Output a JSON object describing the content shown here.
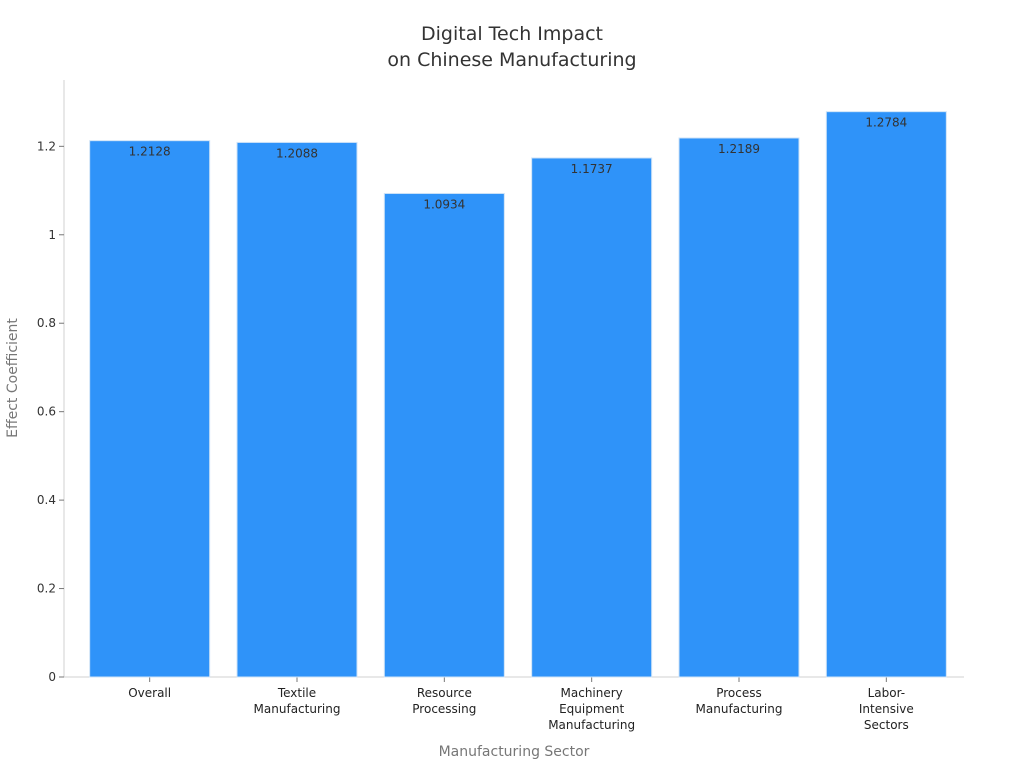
{
  "chart_data": {
    "type": "bar",
    "title_lines": [
      "Digital Tech Impact",
      "on Chinese Manufacturing"
    ],
    "xlabel": "Manufacturing Sector",
    "ylabel": "Effect Coefficient",
    "categories": [
      [
        "Overall"
      ],
      [
        "Textile",
        "Manufacturing"
      ],
      [
        "Resource",
        "Processing"
      ],
      [
        "Machinery",
        "Equipment",
        "Manufacturing"
      ],
      [
        "Process",
        "Manufacturing"
      ],
      [
        "Labor-",
        "Intensive",
        "Sectors"
      ]
    ],
    "values": [
      1.2128,
      1.2088,
      1.0934,
      1.1737,
      1.2189,
      1.2784
    ],
    "value_labels": [
      "1.2128",
      "1.2088",
      "1.0934",
      "1.1737",
      "1.2189",
      "1.2784"
    ],
    "y_ticks": [
      0,
      0.2,
      0.4,
      0.6,
      0.8,
      1,
      1.2
    ],
    "y_tick_labels": [
      "0",
      "0.2",
      "0.4",
      "0.6",
      "0.8",
      "1",
      "1.2"
    ],
    "ylim": [
      0,
      1.35
    ],
    "grid": false,
    "legend": "none",
    "bar_color": "#2f93f9"
  }
}
